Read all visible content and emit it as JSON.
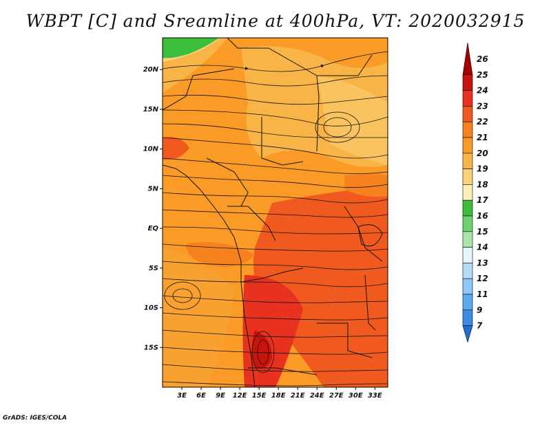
{
  "title": "WBPT [C] and Sreamline at 400hPa, VT: 2020032915",
  "credit": "GrADS: IGES/COLA",
  "map": {
    "lon_range": [
      0,
      35
    ],
    "lat_range": [
      -20,
      24
    ],
    "lat_ticks": [
      {
        "value": 20,
        "label": "20N"
      },
      {
        "value": 15,
        "label": "15N"
      },
      {
        "value": 10,
        "label": "10N"
      },
      {
        "value": 5,
        "label": "5N"
      },
      {
        "value": 0,
        "label": "EQ"
      },
      {
        "value": -5,
        "label": "5S"
      },
      {
        "value": -10,
        "label": "10S"
      },
      {
        "value": -15,
        "label": "15S"
      }
    ],
    "lon_ticks": [
      {
        "value": 3,
        "label": "3E"
      },
      {
        "value": 6,
        "label": "6E"
      },
      {
        "value": 9,
        "label": "9E"
      },
      {
        "value": 12,
        "label": "12E"
      },
      {
        "value": 15,
        "label": "15E"
      },
      {
        "value": 18,
        "label": "18E"
      },
      {
        "value": 21,
        "label": "21E"
      },
      {
        "value": 24,
        "label": "24E"
      },
      {
        "value": 27,
        "label": "27E"
      },
      {
        "value": 30,
        "label": "30E"
      },
      {
        "value": 33,
        "label": "33E"
      }
    ]
  },
  "colorbar": {
    "levels": [
      "26",
      "25",
      "24",
      "23",
      "22",
      "21",
      "20",
      "19",
      "18",
      "17",
      "16",
      "15",
      "14",
      "13",
      "12",
      "11",
      "9",
      "7"
    ],
    "colors": [
      "#a50000",
      "#c8140a",
      "#e6321e",
      "#f05a1e",
      "#f5821e",
      "#fa9b28",
      "#f8b446",
      "#fad278",
      "#fcf0b4",
      "#3cbe3c",
      "#6ed26e",
      "#aae6aa",
      "#e6f8fa",
      "#b4dcf8",
      "#8cc8f8",
      "#5aaaf0",
      "#3c8ce6",
      "#1e6ed2"
    ]
  }
}
